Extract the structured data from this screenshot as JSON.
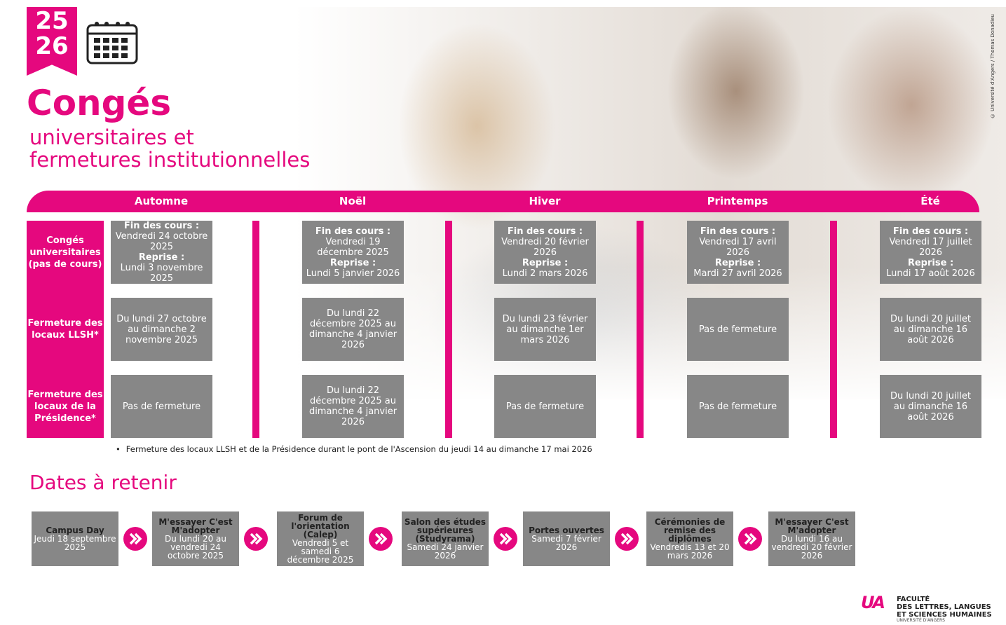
{
  "badge": {
    "top": "25",
    "bottom": "26"
  },
  "header": {
    "title": "Congés",
    "subtitle": [
      "universitaires et",
      "fermetures institutionnelles"
    ]
  },
  "photo_credit": "© Université d'Angers / Thomas Donadieu",
  "table": {
    "seasons": [
      "Automne",
      "Noël",
      "Hiver",
      "Printemps",
      "Été"
    ],
    "row_labels": [
      "Congés universitaires (pas de cours)",
      "Fermeture des locaux LLSH*",
      "Fermeture des locaux de la Présidence*"
    ],
    "holidays": [
      {
        "end_label": "Fin des cours :",
        "end_date": "Vendredi 24 octobre 2025",
        "resume_label": "Reprise :",
        "resume_date": "Lundi 3 novembre 2025"
      },
      {
        "end_label": "Fin des cours :",
        "end_date": "Vendredi 19 décembre 2025",
        "resume_label": "Reprise :",
        "resume_date": "Lundi 5 janvier 2026"
      },
      {
        "end_label": "Fin des cours :",
        "end_date": "Vendredi 20 février 2026",
        "resume_label": "Reprise :",
        "resume_date": "Lundi 2 mars 2026"
      },
      {
        "end_label": "Fin des cours :",
        "end_date": "Vendredi 17 avril 2026",
        "resume_label": "Reprise :",
        "resume_date": "Mardi 27 avril 2026"
      },
      {
        "end_label": "Fin des cours :",
        "end_date": "Vendredi 17 juillet 2026",
        "resume_label": "Reprise :",
        "resume_date": "Lundi 17 août 2026"
      }
    ],
    "llsh_closures": [
      "Du lundi 27 octobre au dimanche 2 novembre 2025",
      "Du lundi 22 décembre 2025 au dimanche 4 janvier 2026",
      "Du lundi 23 février au dimanche 1er mars 2026",
      "Pas de fermeture",
      "Du lundi 20 juillet au dimanche 16 août 2026"
    ],
    "presidence_closures": [
      "Pas de fermeture",
      "Du lundi 22 décembre 2025 au dimanche 4 janvier 2026",
      "Pas de fermeture",
      "Pas de fermeture",
      "Du lundi 20 juillet au dimanche 16 août 2026"
    ]
  },
  "note": "Fermeture des locaux LLSH et de la Présidence durant le pont de l'Ascension du jeudi 14 au dimanche 17 mai 2026",
  "dates": {
    "title": "Dates à retenir",
    "events": [
      {
        "title": "Campus Day",
        "date": "Jeudi 18 septembre 2025"
      },
      {
        "title": "M'essayer C'est M'adopter",
        "date": "Du lundi 20 au vendredi 24 octobre 2025"
      },
      {
        "title": "Forum de l'orientation (Calep)",
        "date": "Vendredi 5 et samedi 6 décembre 2025"
      },
      {
        "title": "Salon des études supérieures (Studyrama)",
        "date": "Samedi 24 janvier 2026"
      },
      {
        "title": "Portes ouvertes",
        "date": "Samedi 7 février 2026"
      },
      {
        "title": "Cérémonies de remise des diplômes",
        "date": "Vendredis 13 et 20 mars 2026"
      },
      {
        "title": "M'essayer C'est M'adopter",
        "date": "Du lundi 16 au vendredi 20 février 2026"
      }
    ]
  },
  "logo": {
    "mark": "UA",
    "lines": [
      "FACULTÉ",
      "DES LETTRES, LANGUES",
      "ET SCIENCES HUMAINES"
    ],
    "university": "UNIVERSITÉ D'ANGERS"
  }
}
